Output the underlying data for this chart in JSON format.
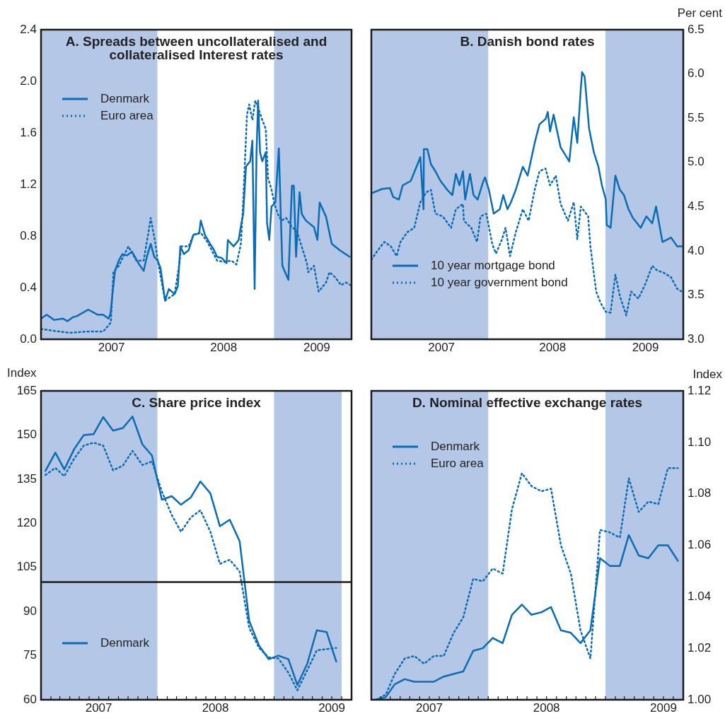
{
  "chart_data": [
    {
      "type": "line",
      "title": "A. Spreads between uncollateralised and collateralised Interest rates",
      "legend": "top left",
      "xlim": [
        "2007-01-01",
        "2009-09-01"
      ],
      "xticks": [
        {
          "value": "2007-08-10",
          "label": "2007"
        },
        {
          "value": "2008-07-27",
          "label": "2008"
        },
        {
          "value": "2009-05-15",
          "label": "2009"
        }
      ],
      "ylim": [
        0,
        2.4
      ],
      "yticks": [
        {
          "value": 0,
          "label": "0.0"
        },
        0.4,
        0.8,
        1.2,
        1.6,
        {
          "value": 2,
          "label": "2.0"
        },
        2.4
      ],
      "bands": [
        {
          "axis": "x",
          "from": "2007-01-01",
          "to": "2008-01-01",
          "color": "#b4c7e7"
        },
        {
          "axis": "x",
          "from": "2009-01-01",
          "to": "2009-09-01",
          "color": "#b4c7e7"
        }
      ],
      "series": [
        {
          "name": "Denmark",
          "color": "#0a6cb5",
          "line_style": "solid",
          "x": [
            "2007-01-01",
            "2007-01-19",
            "2007-02-11",
            "2007-03-11",
            "2007-03-25",
            "2007-04-10",
            "2007-04-24",
            "2007-05-29",
            "2007-06-28",
            "2007-07-15",
            "2007-08-01",
            "2007-08-07",
            "2007-08-14",
            "2007-08-21",
            "2007-09-02",
            "2007-09-13",
            "2007-09-28",
            "2007-10-13",
            "2007-11-05",
            "2007-11-19",
            "2007-11-29",
            "2007-12-11",
            "2007-12-22",
            "2008-01-02",
            "2008-01-11",
            "2008-01-25",
            "2008-02-06",
            "2008-02-24",
            "2008-03-05",
            "2008-03-13",
            "2008-03-24",
            "2008-04-08",
            "2008-04-23",
            "2008-05-11",
            "2008-05-16",
            "2008-05-29",
            "2008-06-14",
            "2008-06-25",
            "2008-07-06",
            "2008-07-21",
            "2008-08-05",
            "2008-08-09",
            "2008-08-27",
            "2008-09-12",
            "2008-09-19",
            "2008-09-26",
            "2008-10-05",
            "2008-10-18",
            "2008-10-25",
            "2008-11-01",
            "2008-11-07",
            "2008-11-12",
            "2008-11-18",
            "2008-11-25",
            "2008-12-06",
            "2008-12-10",
            "2008-12-17",
            "2008-12-24",
            "2009-01-05",
            "2009-01-16",
            "2009-01-22",
            "2009-01-27",
            "2009-02-15",
            "2009-02-26",
            "2009-03-04",
            "2009-03-11",
            "2009-03-22",
            "2009-03-29",
            "2009-04-11",
            "2009-05-06",
            "2009-05-17",
            "2009-05-24",
            "2009-06-13",
            "2009-07-01",
            "2009-07-26",
            "2009-08-26"
          ],
          "values": [
            0.16,
            0.19,
            0.15,
            0.16,
            0.14,
            0.17,
            0.18,
            0.23,
            0.19,
            0.19,
            0.16,
            0.2,
            0.37,
            0.53,
            0.61,
            0.66,
            0.65,
            0.68,
            0.58,
            0.53,
            0.64,
            0.74,
            0.64,
            0.61,
            0.55,
            0.3,
            0.39,
            0.35,
            0.41,
            0.72,
            0.66,
            0.69,
            0.81,
            0.82,
            0.92,
            0.81,
            0.74,
            0.7,
            0.64,
            0.63,
            0.59,
            0.77,
            0.72,
            0.77,
            0.88,
            0.97,
            1.34,
            1.38,
            1.54,
            0.39,
            1.45,
            1.85,
            1.45,
            1.38,
            1.45,
            0.9,
            0.77,
            1.03,
            1.06,
            1.48,
            0.97,
            0.57,
            0.46,
            1.19,
            1.19,
            0.64,
            1.14,
            0.97,
            0.92,
            0.87,
            0.77,
            1.06,
            0.95,
            0.74,
            0.69,
            0.64
          ]
        },
        {
          "name": "Euro area",
          "color": "#0a6cb5",
          "line_style": "dotted",
          "x": [
            "2007-01-01",
            "2007-02-26",
            "2007-04-02",
            "2007-05-24",
            "2007-07-15",
            "2007-07-29",
            "2007-08-08",
            "2007-08-16",
            "2007-09-02",
            "2007-10-02",
            "2007-10-27",
            "2007-11-19",
            "2007-12-04",
            "2007-12-11",
            "2007-12-26",
            "2008-01-02",
            "2008-01-25",
            "2008-02-24",
            "2008-03-09",
            "2008-03-16",
            "2008-04-08",
            "2008-04-23",
            "2008-05-15",
            "2008-06-07",
            "2008-07-06",
            "2008-07-28",
            "2008-08-20",
            "2008-09-05",
            "2008-09-19",
            "2008-09-26",
            "2008-10-08",
            "2008-10-15",
            "2008-10-25",
            "2008-11-03",
            "2008-11-14",
            "2008-11-25",
            "2008-12-06",
            "2008-12-13",
            "2008-12-24",
            "2009-01-02",
            "2009-01-13",
            "2009-01-24",
            "2009-02-08",
            "2009-02-23",
            "2009-03-15",
            "2009-03-26",
            "2009-04-14",
            "2009-04-18",
            "2009-05-06",
            "2009-05-17",
            "2009-05-21",
            "2009-06-13",
            "2009-06-24",
            "2009-07-12",
            "2009-07-30",
            "2009-08-15",
            "2009-08-29"
          ],
          "values": [
            0.08,
            0.06,
            0.05,
            0.06,
            0.06,
            0.1,
            0.13,
            0.52,
            0.57,
            0.72,
            0.61,
            0.61,
            0.83,
            0.94,
            0.74,
            0.61,
            0.3,
            0.35,
            0.57,
            0.72,
            0.72,
            0.81,
            0.83,
            0.75,
            0.61,
            0.6,
            0.61,
            0.58,
            0.74,
            1.06,
            1.74,
            1.82,
            1.7,
            1.85,
            1.78,
            1.7,
            1.63,
            1.25,
            1.16,
            1.05,
            0.97,
            0.92,
            0.94,
            0.88,
            0.83,
            0.74,
            0.59,
            0.52,
            0.57,
            0.42,
            0.37,
            0.44,
            0.52,
            0.48,
            0.42,
            0.44,
            0.42
          ]
        }
      ]
    },
    {
      "type": "line",
      "title": "B. Danish bond rates",
      "legend": "bottom left",
      "y2label": "Per cent",
      "xlim": [
        "2007-01-01",
        "2009-09-01"
      ],
      "xticks": [
        {
          "value": "2007-08-08",
          "label": "2007"
        },
        {
          "value": "2008-07-20",
          "label": "2008"
        },
        {
          "value": "2009-05-06",
          "label": "2009"
        }
      ],
      "y2lim": [
        3,
        6.5
      ],
      "y2ticks": [
        {
          "value": 3,
          "label": "3.0"
        },
        3.5,
        {
          "value": 4,
          "label": "4.0"
        },
        4.5,
        {
          "value": 5,
          "label": "5.0"
        },
        5.5,
        {
          "value": 6,
          "label": "6.0"
        },
        6.5
      ],
      "bands": [
        {
          "axis": "x",
          "from": "2007-01-01",
          "to": "2008-01-01",
          "color": "#b4c7e7"
        },
        {
          "axis": "x",
          "from": "2009-01-01",
          "to": "2009-09-01",
          "color": "#b4c7e7"
        }
      ],
      "series": [
        {
          "name": "10 year mortgage bond",
          "color": "#0a6cb5",
          "line_style": "solid",
          "axis": "y2",
          "x": [
            "2007-01-01",
            "2007-02-04",
            "2007-02-28",
            "2007-03-10",
            "2007-03-28",
            "2007-04-09",
            "2007-05-04",
            "2007-05-22",
            "2007-06-03",
            "2007-06-13",
            "2007-06-14",
            "2007-06-25",
            "2007-07-06",
            "2007-07-20",
            "2007-08-05",
            "2007-08-26",
            "2007-09-11",
            "2007-09-22",
            "2007-10-03",
            "2007-10-14",
            "2007-10-21",
            "2007-11-05",
            "2007-11-16",
            "2007-11-29",
            "2007-12-15",
            "2007-12-22",
            "2008-01-03",
            "2008-01-18",
            "2008-02-06",
            "2008-02-17",
            "2008-03-01",
            "2008-03-12",
            "2008-03-27",
            "2008-04-18",
            "2008-05-03",
            "2008-05-25",
            "2008-06-09",
            "2008-06-28",
            "2008-07-05",
            "2008-07-12",
            "2008-07-23",
            "2008-08-14",
            "2008-09-10",
            "2008-09-24",
            "2008-10-05",
            "2008-10-16",
            "2008-10-20",
            "2008-10-28",
            "2008-11-11",
            "2008-11-26",
            "2008-12-10",
            "2008-12-21",
            "2009-01-02",
            "2009-01-05",
            "2009-01-17",
            "2009-02-01",
            "2009-02-15",
            "2009-02-28",
            "2009-03-14",
            "2009-03-28",
            "2009-04-21",
            "2009-05-09",
            "2009-05-27",
            "2009-06-08",
            "2009-06-28",
            "2009-07-25",
            "2009-08-13",
            "2009-08-27"
          ],
          "values": [
            4.65,
            4.7,
            4.71,
            4.61,
            4.58,
            4.74,
            4.79,
            4.95,
            5.06,
            4.47,
            5.15,
            5.15,
            4.98,
            4.9,
            4.79,
            4.69,
            4.63,
            4.87,
            4.74,
            4.9,
            4.58,
            4.87,
            4.63,
            4.58,
            4.77,
            4.83,
            4.69,
            4.42,
            4.47,
            4.63,
            4.47,
            4.55,
            4.69,
            4.95,
            4.85,
            5.22,
            5.43,
            5.49,
            5.57,
            5.35,
            5.54,
            5.17,
            5.01,
            5.51,
            5.22,
            5.83,
            6.02,
            5.97,
            5.38,
            5.11,
            4.95,
            4.74,
            4.58,
            4.29,
            4.26,
            4.85,
            4.69,
            4.63,
            4.47,
            4.37,
            4.26,
            4.39,
            4.31,
            4.5,
            4.1,
            4.15,
            4.05,
            4.05
          ]
        },
        {
          "name": "10 year government bond",
          "color": "#0a6cb5",
          "line_style": "dotted",
          "axis": "y2",
          "x": [
            "2007-01-01",
            "2007-01-26",
            "2007-02-11",
            "2007-03-03",
            "2007-03-21",
            "2007-04-02",
            "2007-04-23",
            "2007-05-15",
            "2007-06-03",
            "2007-06-21",
            "2007-07-06",
            "2007-07-20",
            "2007-08-12",
            "2007-09-07",
            "2007-09-22",
            "2007-10-14",
            "2007-10-17",
            "2007-11-09",
            "2007-11-27",
            "2007-12-08",
            "2007-12-26",
            "2008-01-14",
            "2008-01-25",
            "2008-02-13",
            "2008-02-24",
            "2008-03-09",
            "2008-03-27",
            "2008-04-18",
            "2008-05-06",
            "2008-05-25",
            "2008-06-09",
            "2008-06-28",
            "2008-07-12",
            "2008-07-30",
            "2008-08-14",
            "2008-09-06",
            "2008-09-24",
            "2008-10-05",
            "2008-10-16",
            "2008-11-08",
            "2008-11-15",
            "2008-12-03",
            "2008-12-17",
            "2009-01-02",
            "2009-01-17",
            "2009-02-01",
            "2009-02-15",
            "2009-03-07",
            "2009-03-22",
            "2009-04-14",
            "2009-05-05",
            "2009-05-27",
            "2009-06-11",
            "2009-07-03",
            "2009-07-25",
            "2009-08-13",
            "2009-08-27"
          ],
          "values": [
            3.9,
            4.03,
            4.1,
            4.05,
            3.94,
            4.1,
            4.21,
            4.26,
            4.55,
            4.66,
            4.69,
            4.42,
            4.39,
            4.26,
            4.47,
            4.53,
            4.34,
            4.26,
            4.1,
            4.39,
            4.42,
            4.07,
            3.97,
            4.13,
            4.26,
            3.94,
            4.21,
            4.47,
            4.34,
            4.69,
            4.9,
            4.93,
            4.74,
            4.85,
            4.53,
            4.34,
            4.55,
            4.13,
            4.5,
            4.39,
            4.05,
            3.54,
            3.41,
            3.31,
            3.3,
            3.73,
            3.49,
            3.27,
            3.54,
            3.46,
            3.62,
            3.83,
            3.78,
            3.75,
            3.7,
            3.57,
            3.54
          ]
        }
      ]
    },
    {
      "type": "line",
      "title": "C. Share price index",
      "legend": "bottom left",
      "ylabel": "Index",
      "x": [
        "2007-01-15",
        "2007-02-15",
        "2007-03-15",
        "2007-04-15",
        "2007-05-15",
        "2007-06-15",
        "2007-07-15",
        "2007-08-15",
        "2007-09-15",
        "2007-10-15",
        "2007-11-15",
        "2007-12-15",
        "2008-01-15",
        "2008-02-15",
        "2008-03-15",
        "2008-04-15",
        "2008-05-15",
        "2008-06-15",
        "2008-07-15",
        "2008-08-15",
        "2008-09-15",
        "2008-10-15",
        "2008-11-15",
        "2008-12-15",
        "2009-01-15",
        "2009-02-15",
        "2009-03-15",
        "2009-04-15",
        "2009-05-15",
        "2009-06-15",
        "2009-07-15"
      ],
      "xlim": [
        "2007-01-01",
        "2009-09-01"
      ],
      "xticks": [
        {
          "value": "2007-02-01",
          "label": null
        },
        {
          "value": "2007-03-01",
          "label": null
        },
        {
          "value": "2007-04-01",
          "label": null
        },
        {
          "value": "2007-05-01",
          "label": null
        },
        {
          "value": "2007-06-01",
          "label": null
        },
        {
          "value": "2007-07-01",
          "label": "2007"
        },
        {
          "value": "2007-08-01",
          "label": null
        },
        {
          "value": "2007-09-01",
          "label": null
        },
        {
          "value": "2007-10-01",
          "label": null
        },
        {
          "value": "2007-11-01",
          "label": null
        },
        {
          "value": "2007-12-01",
          "label": null
        },
        {
          "value": "2008-01-01",
          "label": null
        },
        {
          "value": "2008-02-01",
          "label": null
        },
        {
          "value": "2008-03-01",
          "label": null
        },
        {
          "value": "2008-04-01",
          "label": null
        },
        {
          "value": "2008-05-01",
          "label": null
        },
        {
          "value": "2008-06-01",
          "label": null
        },
        {
          "value": "2008-07-01",
          "label": "2008"
        },
        {
          "value": "2008-08-01",
          "label": null
        },
        {
          "value": "2008-09-01",
          "label": null
        },
        {
          "value": "2008-10-01",
          "label": null
        },
        {
          "value": "2008-11-01",
          "label": null
        },
        {
          "value": "2008-12-01",
          "label": null
        },
        {
          "value": "2009-01-01",
          "label": null
        },
        {
          "value": "2009-02-01",
          "label": null
        },
        {
          "value": "2009-03-01",
          "label": null
        },
        {
          "value": "2009-04-01",
          "label": null
        },
        {
          "value": "2009-05-01",
          "label": null
        },
        {
          "value": "2009-06-01",
          "label": null
        },
        {
          "value": "2009-07-01",
          "label": "2009"
        },
        {
          "value": "2009-08-01",
          "label": null
        }
      ],
      "ylim": [
        60,
        165
      ],
      "yticks": [
        60,
        75,
        90,
        105,
        120,
        135,
        150,
        165
      ],
      "ref_lines": [
        {
          "axis": "y",
          "value": 100,
          "color": "#1a1a1a",
          "line_style": "solid"
        }
      ],
      "bands": [
        {
          "axis": "x",
          "from": "2007-01-01",
          "to": "2008-01-01",
          "color": "#b4c7e7"
        },
        {
          "axis": "x",
          "from": "2009-01-01",
          "to": "2009-08-01",
          "color": "#b4c7e7"
        }
      ],
      "series": [
        {
          "name": "Denmark",
          "color": "#0a6cb5",
          "line_style": "solid",
          "values": [
            137.8,
            144.0,
            138.3,
            145.2,
            150.0,
            150.3,
            156.1,
            151.5,
            152.4,
            156.3,
            146.8,
            143.0,
            128.0,
            129.2,
            126.3,
            128.8,
            134.2,
            130.2,
            119.0,
            121.2,
            113.9,
            86.8,
            78.4,
            73.8,
            75.0,
            73.8,
            65.0,
            72.2,
            83.6,
            83.0,
            73.0
          ]
        },
        {
          "color": "#0a6cb5",
          "line_style": "dotted",
          "values": [
            136.4,
            138.8,
            136.0,
            142.0,
            146.4,
            147.4,
            146.4,
            138.0,
            139.6,
            144.6,
            139.8,
            141.0,
            130.8,
            122.8,
            117.1,
            122.0,
            124.4,
            117.2,
            106.2,
            107.6,
            103.6,
            84.4,
            77.6,
            74.4,
            74.0,
            69.2,
            63.2,
            70.0,
            76.8,
            77.2,
            77.6
          ]
        }
      ]
    },
    {
      "type": "line",
      "title": "D. Nominal effective exchange rates",
      "legend": "top left",
      "y2label": "Index",
      "x": [
        "2007-01-15",
        "2007-02-15",
        "2007-03-15",
        "2007-04-15",
        "2007-05-15",
        "2007-06-15",
        "2007-07-15",
        "2007-08-15",
        "2007-09-15",
        "2007-10-15",
        "2007-11-15",
        "2007-12-15",
        "2008-01-15",
        "2008-02-15",
        "2008-03-15",
        "2008-04-15",
        "2008-05-15",
        "2008-06-15",
        "2008-07-15",
        "2008-08-15",
        "2008-09-15",
        "2008-10-15",
        "2008-11-15",
        "2008-12-15",
        "2009-01-15",
        "2009-02-15",
        "2009-03-15",
        "2009-04-15",
        "2009-05-15",
        "2009-06-15",
        "2009-07-15",
        "2009-08-15"
      ],
      "xlim": [
        "2007-01-01",
        "2009-09-01"
      ],
      "xticks": [
        {
          "value": "2007-02-01",
          "label": null
        },
        {
          "value": "2007-03-01",
          "label": null
        },
        {
          "value": "2007-04-01",
          "label": null
        },
        {
          "value": "2007-05-01",
          "label": null
        },
        {
          "value": "2007-06-01",
          "label": null
        },
        {
          "value": "2007-07-01",
          "label": "2007"
        },
        {
          "value": "2007-08-01",
          "label": null
        },
        {
          "value": "2007-09-01",
          "label": null
        },
        {
          "value": "2007-10-01",
          "label": null
        },
        {
          "value": "2007-11-01",
          "label": null
        },
        {
          "value": "2007-12-01",
          "label": null
        },
        {
          "value": "2008-01-01",
          "label": null
        },
        {
          "value": "2008-02-01",
          "label": null
        },
        {
          "value": "2008-03-01",
          "label": null
        },
        {
          "value": "2008-04-01",
          "label": null
        },
        {
          "value": "2008-05-01",
          "label": null
        },
        {
          "value": "2008-06-01",
          "label": null
        },
        {
          "value": "2008-07-01",
          "label": "2008"
        },
        {
          "value": "2008-08-01",
          "label": null
        },
        {
          "value": "2008-09-01",
          "label": null
        },
        {
          "value": "2008-10-01",
          "label": null
        },
        {
          "value": "2008-11-01",
          "label": null
        },
        {
          "value": "2008-12-01",
          "label": null
        },
        {
          "value": "2009-01-01",
          "label": null
        },
        {
          "value": "2009-02-01",
          "label": null
        },
        {
          "value": "2009-03-01",
          "label": null
        },
        {
          "value": "2009-04-01",
          "label": null
        },
        {
          "value": "2009-05-01",
          "label": null
        },
        {
          "value": "2009-06-01",
          "label": null
        },
        {
          "value": "2009-07-01",
          "label": "2009"
        },
        {
          "value": "2009-08-01",
          "label": null
        }
      ],
      "y2lim": [
        1,
        1.12
      ],
      "y2ticks": [
        {
          "value": 1,
          "label": "1.00"
        },
        1.02,
        1.04,
        1.06,
        1.08,
        {
          "value": 1.1,
          "label": "1.10"
        },
        1.12
      ],
      "bands": [
        {
          "axis": "x",
          "from": "2007-01-01",
          "to": "2008-01-01",
          "color": "#b4c7e7"
        },
        {
          "axis": "x",
          "from": "2009-01-01",
          "to": "2009-09-01",
          "color": "#b4c7e7"
        }
      ],
      "series": [
        {
          "name": "Denmark",
          "color": "#0a6cb5",
          "line_style": "solid",
          "axis": "y2",
          "values": [
            1.0,
            1.001,
            1.006,
            1.008,
            1.007,
            1.007,
            1.007,
            1.009,
            1.01,
            1.011,
            1.019,
            1.02,
            1.024,
            1.022,
            1.033,
            1.037,
            1.033,
            1.034,
            1.036,
            1.027,
            1.026,
            1.022,
            1.027,
            1.055,
            1.052,
            1.052,
            1.064,
            1.056,
            1.055,
            1.06,
            1.06,
            1.054
          ]
        },
        {
          "name": "Euro area",
          "color": "#0a6cb5",
          "line_style": "dotted",
          "axis": "y2",
          "values": [
            1.0,
            1.002,
            1.01,
            1.016,
            1.017,
            1.014,
            1.017,
            1.017,
            1.026,
            1.032,
            1.047,
            1.046,
            1.051,
            1.049,
            1.074,
            1.088,
            1.083,
            1.081,
            1.082,
            1.06,
            1.049,
            1.027,
            1.016,
            1.066,
            1.065,
            1.063,
            1.086,
            1.073,
            1.077,
            1.076,
            1.09,
            1.09
          ]
        }
      ]
    }
  ]
}
